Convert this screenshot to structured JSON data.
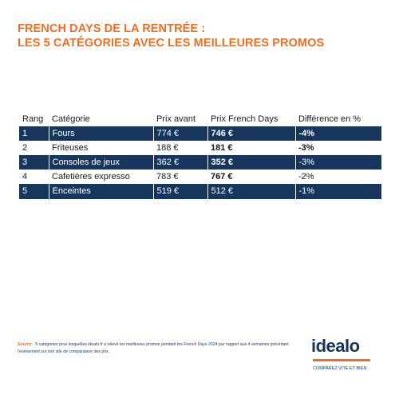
{
  "header": {
    "title_line1": "FRENCH DAYS DE LA RENTRÉE :",
    "title_line2": "LES 5 CATÉGORIES AVEC LES MEILLEURES PROMOS"
  },
  "table": {
    "columns": [
      "Rang",
      "Catégorie",
      "Prix avant",
      "Prix French Days",
      "Différence en %"
    ],
    "rows": [
      [
        "1",
        "Fours",
        "774 €",
        "746 €",
        "-4%"
      ],
      [
        "2",
        "Friteuses",
        "188 €",
        "181 €",
        "-3%"
      ],
      [
        "3",
        "Consoles de jeux",
        "362 €",
        "352 €",
        "-3%"
      ],
      [
        "4",
        "Cafetières expresso",
        "783 €",
        "767 €",
        "-2%"
      ],
      [
        "5",
        "Enceintes",
        "519 €",
        "512 €",
        "-1%"
      ]
    ]
  },
  "footer": {
    "source_label": "Source :",
    "source_text": "5 catégories pour lesquelles idealo.fr a relevé les meilleures promos pendant les French Days 2024 par rapport aux 4 semaines précédant l'événement sur son site de comparaison des prix.",
    "logo": "idealo",
    "tagline": "COMPAREZ VITE ET BIEN"
  }
}
